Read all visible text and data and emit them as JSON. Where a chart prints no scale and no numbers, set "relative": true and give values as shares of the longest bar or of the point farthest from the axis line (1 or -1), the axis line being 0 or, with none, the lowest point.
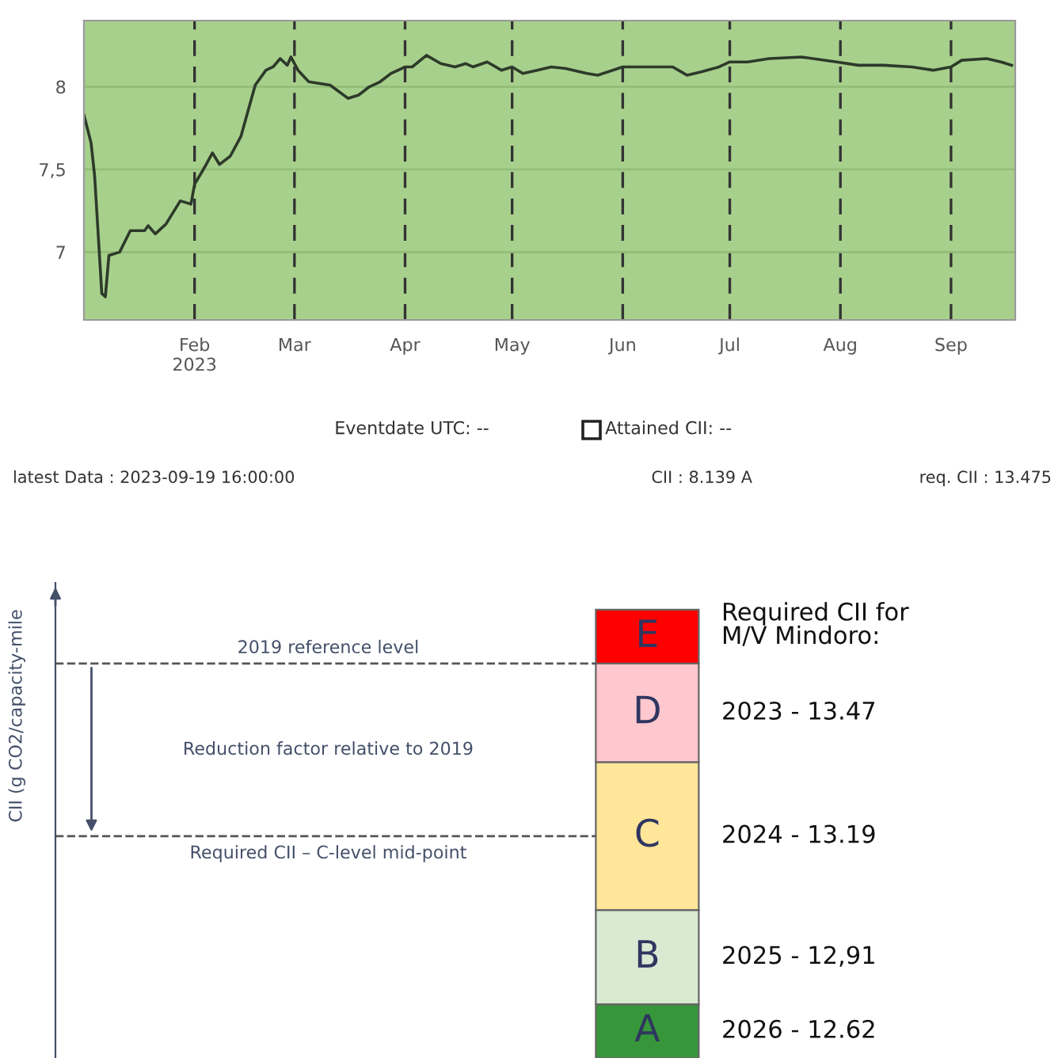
{
  "chart_data": [
    {
      "type": "line",
      "xlim": [
        "2023-01-01",
        "2023-09-19"
      ],
      "ylim": [
        6.59,
        8.4
      ],
      "yticks": [
        {
          "value": 7,
          "label": "7"
        },
        {
          "value": 7.5,
          "label": "7,5"
        },
        {
          "value": 8,
          "label": "8"
        }
      ],
      "xticks": [
        {
          "value": "2023-02-01",
          "label": "Feb\n2023"
        },
        {
          "value": "2023-03-01",
          "label": "Mar"
        },
        {
          "value": "2023-04-01",
          "label": "Apr"
        },
        {
          "value": "2023-05-01",
          "label": "May"
        },
        {
          "value": "2023-06-01",
          "label": "Jun"
        },
        {
          "value": "2023-07-01",
          "label": "Jul"
        },
        {
          "value": "2023-08-01",
          "label": "Aug"
        },
        {
          "value": "2023-09-01",
          "label": "Sep"
        }
      ],
      "grid": true,
      "marker": "none",
      "line_style": "solid",
      "series": [
        {
          "color": "#2d3a2a",
          "x": [
            "2023-01-01",
            "2023-01-03",
            "2023-01-04",
            "2023-01-06",
            "2023-01-07",
            "2023-01-08",
            "2023-01-11",
            "2023-01-14",
            "2023-01-18",
            "2023-01-19",
            "2023-01-21",
            "2023-01-24",
            "2023-01-28",
            "2023-01-31",
            "2023-02-01",
            "2023-02-04",
            "2023-02-06",
            "2023-02-08",
            "2023-02-11",
            "2023-02-14",
            "2023-02-18",
            "2023-02-21",
            "2023-02-23",
            "2023-02-25",
            "2023-02-27",
            "2023-02-28",
            "2023-03-02",
            "2023-03-05",
            "2023-03-11",
            "2023-03-16",
            "2023-03-19",
            "2023-03-22",
            "2023-03-25",
            "2023-03-28",
            "2023-04-01",
            "2023-04-03",
            "2023-04-07",
            "2023-04-11",
            "2023-04-15",
            "2023-04-18",
            "2023-04-20",
            "2023-04-24",
            "2023-04-28",
            "2023-05-01",
            "2023-05-04",
            "2023-05-08",
            "2023-05-12",
            "2023-05-16",
            "2023-05-22",
            "2023-05-25",
            "2023-06-01",
            "2023-06-15",
            "2023-06-19",
            "2023-06-23",
            "2023-06-28",
            "2023-07-01",
            "2023-07-06",
            "2023-07-12",
            "2023-07-21",
            "2023-07-31",
            "2023-08-06",
            "2023-08-13",
            "2023-08-21",
            "2023-08-27",
            "2023-09-01",
            "2023-09-04",
            "2023-09-11",
            "2023-09-15",
            "2023-09-18"
          ],
          "values": [
            7.83,
            7.66,
            7.46,
            6.75,
            6.73,
            6.98,
            7.0,
            7.13,
            7.13,
            7.16,
            7.11,
            7.17,
            7.31,
            7.29,
            7.41,
            7.52,
            7.6,
            7.53,
            7.58,
            7.7,
            8.01,
            8.1,
            8.12,
            8.17,
            8.13,
            8.18,
            8.1,
            8.03,
            8.01,
            7.93,
            7.95,
            8.0,
            8.03,
            8.08,
            8.12,
            8.12,
            8.19,
            8.14,
            8.12,
            8.14,
            8.12,
            8.15,
            8.1,
            8.12,
            8.08,
            8.1,
            8.12,
            8.11,
            8.08,
            8.07,
            8.12,
            8.12,
            8.07,
            8.09,
            8.12,
            8.15,
            8.15,
            8.17,
            8.18,
            8.15,
            8.13,
            8.13,
            8.12,
            8.1,
            8.12,
            8.16,
            8.17,
            8.15,
            8.13
          ]
        }
      ],
      "annotations": [
        "Eventdate UTC: --",
        "Attained CII: --",
        "latest Data : 2023-09-19 16:00:00",
        "CII : 8.139 A",
        "req. CII : 13.475"
      ]
    },
    {
      "type": "bar",
      "stacked": true,
      "relative": true,
      "categories": [
        null
      ],
      "ylabel": "CII (g CO2/capacity-mile",
      "series": [
        {
          "name": "A",
          "color": "#38963a",
          "values": [
            0.12
          ]
        },
        {
          "name": "B",
          "color": "#d9ead3",
          "values": [
            0.21
          ]
        },
        {
          "name": "C",
          "color": "#ffe699",
          "values": [
            0.33
          ]
        },
        {
          "name": "D",
          "color": "#ffc7ce",
          "values": [
            0.22
          ]
        },
        {
          "name": "E",
          "color": "#ff0000",
          "values": [
            0.12
          ]
        }
      ],
      "ref_lines": [
        {
          "axis": "y",
          "value": 0.88,
          "label": "2019 reference level",
          "color": "#555555",
          "line_style": "dashed"
        },
        {
          "axis": "y",
          "value": 0.495,
          "label": "Required CII – C-level mid-point",
          "color": "#555555",
          "line_style": "dashed"
        }
      ],
      "annotations": [
        "Reduction factor relative to 2019",
        "Required CII for\nM/V Mindoro:",
        "2023 - 13.47",
        "2024 - 13.19",
        "2025 - 12,91",
        "2026 - 12.62"
      ]
    }
  ]
}
